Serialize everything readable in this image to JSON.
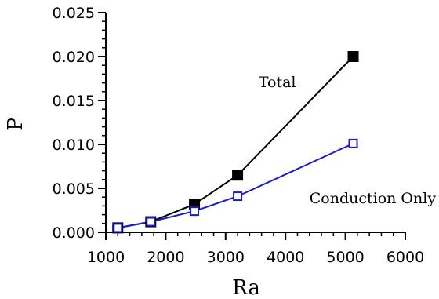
{
  "chart_data": {
    "type": "line",
    "xlabel": "Ra",
    "ylabel": "P",
    "xlim": [
      1000,
      6000
    ],
    "ylim": [
      0,
      0.025
    ],
    "xticks": [
      1000,
      2000,
      3000,
      4000,
      5000,
      6000
    ],
    "xtick_labels": [
      "1000",
      "2000",
      "3000",
      "4000",
      "5000",
      "6000"
    ],
    "yticks": [
      0,
      0.005,
      0.01,
      0.015,
      0.02,
      0.025
    ],
    "ytick_labels": [
      "0.000",
      "0.005",
      "0.010",
      "0.015",
      "0.020",
      "0.025"
    ],
    "grid": false,
    "legend": "none",
    "series": [
      {
        "x": [
          1200,
          1750,
          2480,
          3200,
          5130
        ],
        "y": [
          0.0005,
          0.0012,
          0.0032,
          0.0065,
          0.02
        ],
        "color": "#000000",
        "marker": "filled-square"
      },
      {
        "x": [
          1200,
          1750,
          2480,
          3200,
          5130
        ],
        "y": [
          0.0005,
          0.0012,
          0.0024,
          0.0041,
          0.0101
        ],
        "color": "#1a1acc",
        "marker": "open-square"
      }
    ],
    "annotations": [
      {
        "text": "Total",
        "x": 3550,
        "y": 0.0165
      },
      {
        "text": "Conduction Only",
        "x": 4400,
        "y": 0.0033
      }
    ]
  }
}
